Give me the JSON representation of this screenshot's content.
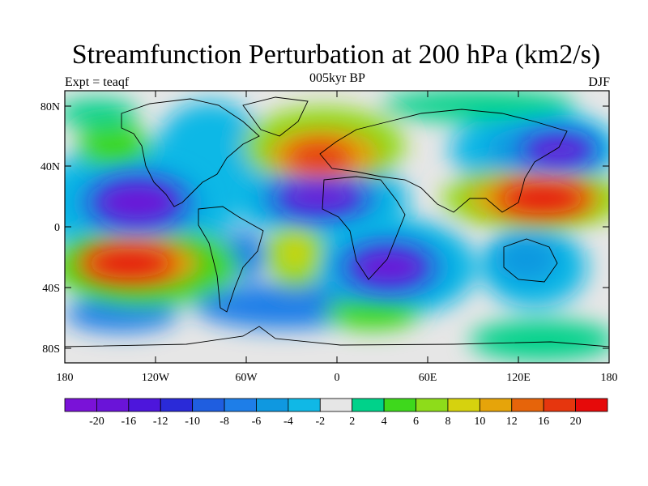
{
  "title": "Streamfunction Perturbation at 200 hPa (km2/s)",
  "left_label": "Expt = teaqf",
  "center_label": "005kyr BP",
  "right_label": "DJF",
  "axes": {
    "y_ticks": [
      "80N",
      "40N",
      "0",
      "40S",
      "80S"
    ],
    "x_ticks": [
      "180",
      "120W",
      "60W",
      "0",
      "60E",
      "120E",
      "180"
    ]
  },
  "colorbar": {
    "labels": [
      "-20",
      "-16",
      "-12",
      "-10",
      "-8",
      "-6",
      "-4",
      "-2",
      "2",
      "4",
      "6",
      "8",
      "10",
      "12",
      "16",
      "20"
    ],
    "colors": [
      "#7a12d8",
      "#6a14d8",
      "#4d16dc",
      "#2a2ad8",
      "#1f5ee0",
      "#1e7ee8",
      "#0f98e0",
      "#10b8e6",
      "#e6e6e6",
      "#00d28a",
      "#3ed81c",
      "#8edc1a",
      "#d6d20e",
      "#e6a40a",
      "#e6640a",
      "#e6360e",
      "#e60a0a"
    ]
  },
  "features": [
    {
      "name": "north-pacific-positive-center",
      "level": 6
    },
    {
      "name": "north-atlantic-europe-positive-center",
      "level": 12
    },
    {
      "name": "asia-pacific-positive-center",
      "level": 20
    },
    {
      "name": "south-pacific-positive-center",
      "level": 20
    },
    {
      "name": "south-atlantic-positive-center",
      "level": 10
    },
    {
      "name": "east-pacific-negative-center",
      "level": -20
    },
    {
      "name": "atlantic-africa-negative-center",
      "level": -20
    },
    {
      "name": "south-atlantic-negative-center",
      "level": -20
    },
    {
      "name": "northwest-pacific-negative-center",
      "level": -16
    },
    {
      "name": "australia-negative-center",
      "level": -8
    }
  ]
}
